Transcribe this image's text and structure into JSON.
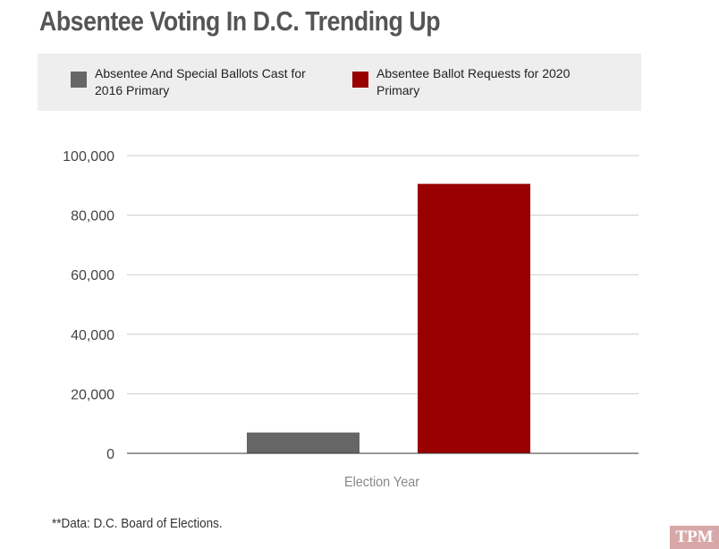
{
  "title": "Absentee Voting In D.C. Trending Up",
  "legend": [
    {
      "label": "Absentee And Special Ballots Cast for 2016 Primary",
      "color": "#666666"
    },
    {
      "label": "Absentee Ballot Requests for 2020 Primary",
      "color": "#990000"
    }
  ],
  "source": "**Data: D.C. Board of Elections.",
  "logo": "TPM",
  "chart_data": {
    "type": "bar",
    "title": "Absentee Voting In D.C. Trending Up",
    "xlabel": "Election Year",
    "ylabel": "",
    "categories": [
      "Election Year"
    ],
    "series": [
      {
        "name": "Absentee And Special Ballots Cast for 2016 Primary",
        "values": [
          7000
        ],
        "color": "#666666"
      },
      {
        "name": "Absentee Ballot Requests for 2020 Primary",
        "values": [
          90500
        ],
        "color": "#990000"
      }
    ],
    "ylim": [
      0,
      100000
    ],
    "yticks": [
      0,
      20000,
      40000,
      60000,
      80000,
      100000
    ],
    "ytick_labels": [
      "0",
      "20,000",
      "40,000",
      "60,000",
      "80,000",
      "100,000"
    ],
    "grid": true,
    "legend_position": "top"
  }
}
